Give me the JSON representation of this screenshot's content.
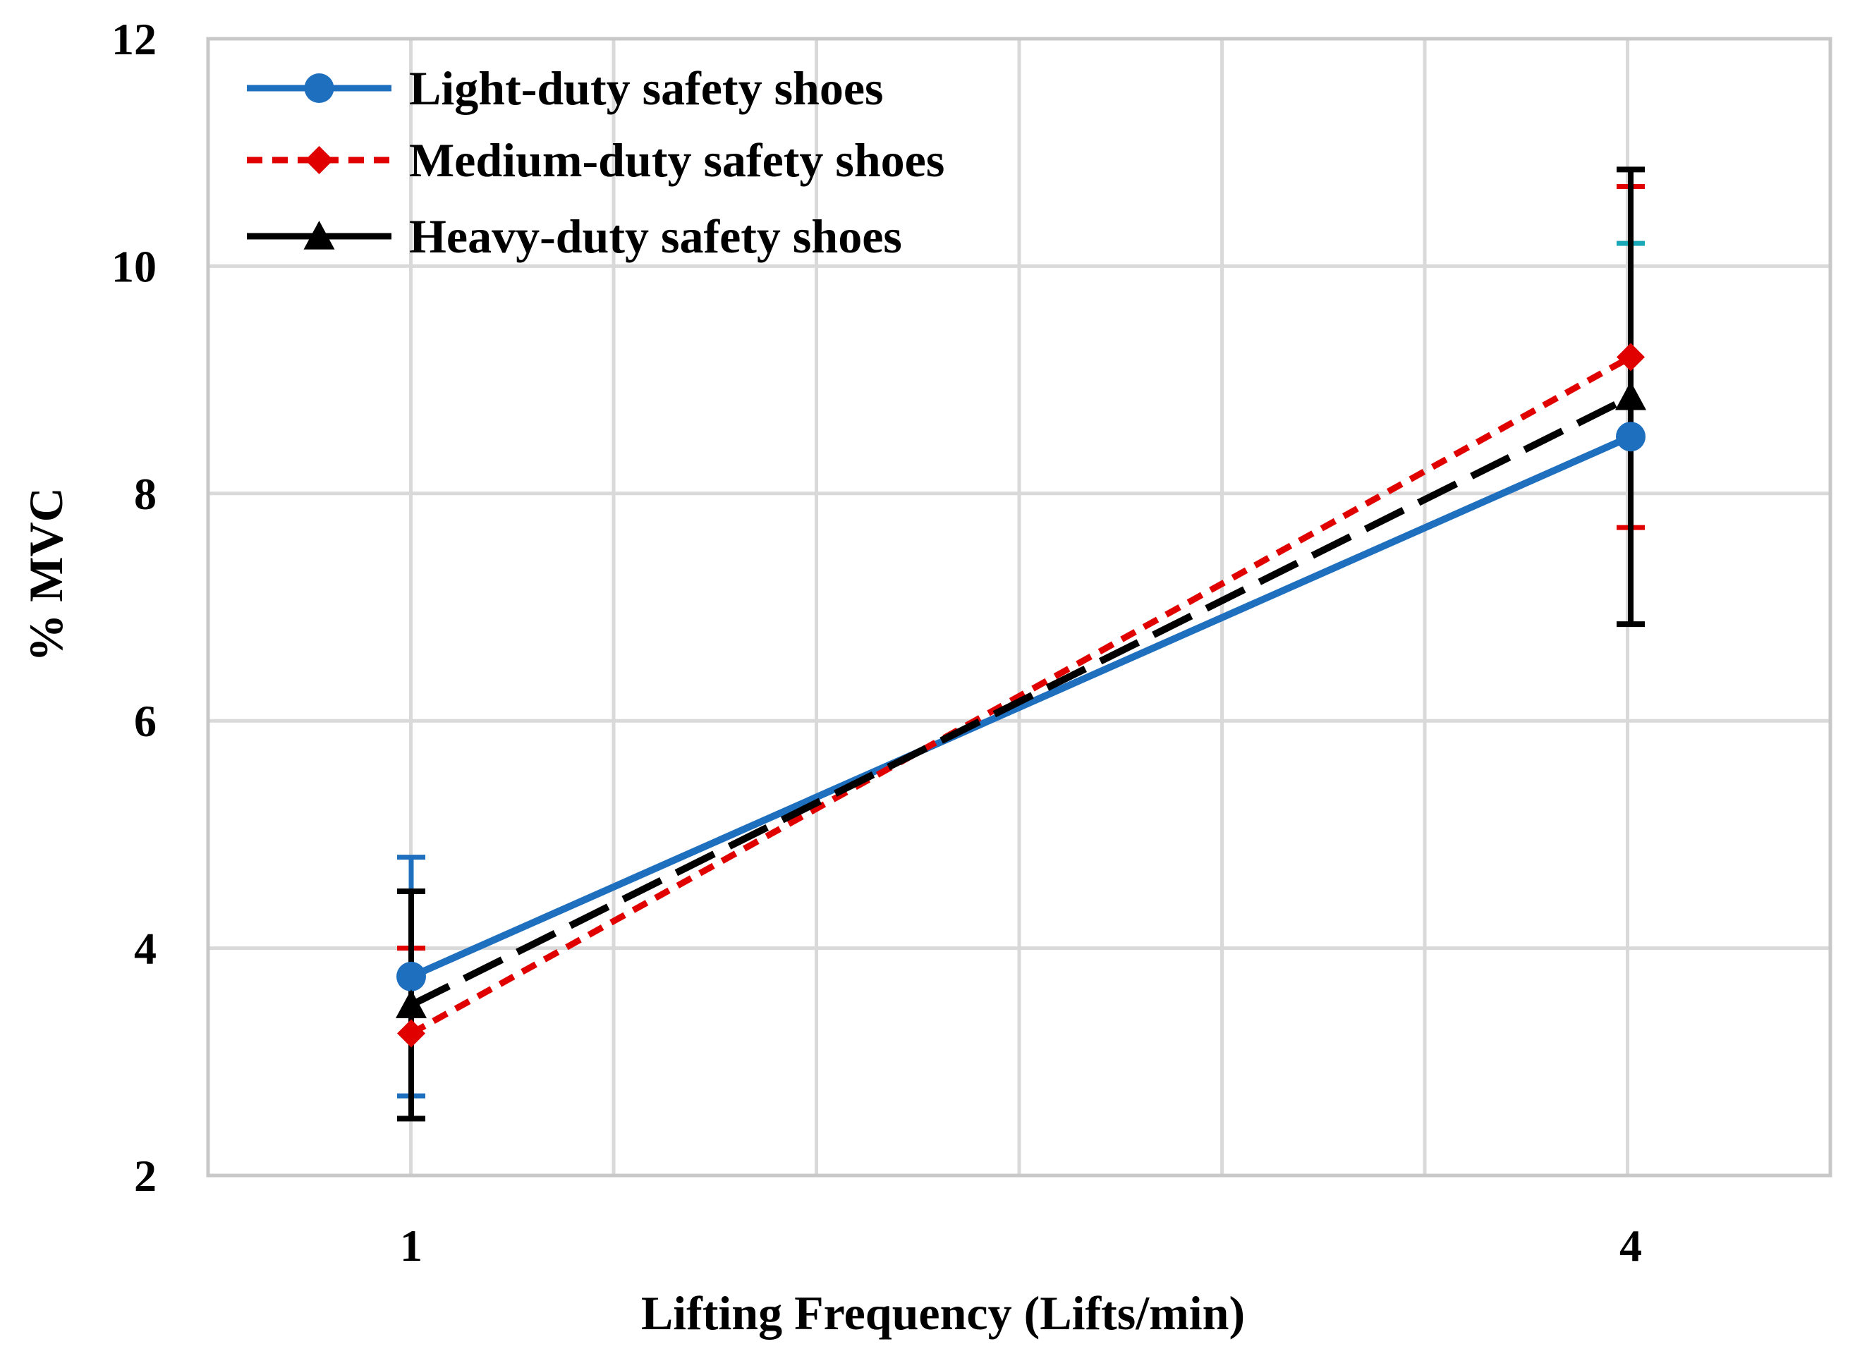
{
  "chart_data": {
    "type": "line",
    "title": "",
    "xlabel": "Lifting Frequency (Lifts/min)",
    "ylabel": "% MVC",
    "x_categories": [
      "1",
      "4"
    ],
    "ylim": [
      2,
      12
    ],
    "y_ticks": [
      2,
      4,
      6,
      8,
      10,
      12
    ],
    "grid": true,
    "legend_position": "top-left",
    "series": [
      {
        "name": "Light-duty safety shoes",
        "color": "#1f6fbf",
        "error_color": "#1f6fbf",
        "marker": "circle",
        "line_style": "solid",
        "values": [
          3.75,
          8.5
        ],
        "error_low": [
          2.7,
          6.85
        ],
        "error_high": [
          4.8,
          10.2
        ]
      },
      {
        "name": "Medium-duty safety shoes",
        "color": "#e00000",
        "error_color": "#e00000",
        "marker": "diamond",
        "line_style": "dashed-short",
        "values": [
          3.25,
          9.2
        ],
        "error_low": [
          2.5,
          7.7
        ],
        "error_high": [
          4.0,
          10.7
        ]
      },
      {
        "name": "Heavy-duty safety shoes",
        "color": "#000000",
        "error_color": "#000000",
        "marker": "triangle",
        "line_style": "dashed-long",
        "values": [
          3.5,
          8.85
        ],
        "error_low": [
          2.5,
          6.85
        ],
        "error_high": [
          4.5,
          10.85
        ]
      }
    ],
    "secondary_error_color": "#1aa7b8"
  }
}
